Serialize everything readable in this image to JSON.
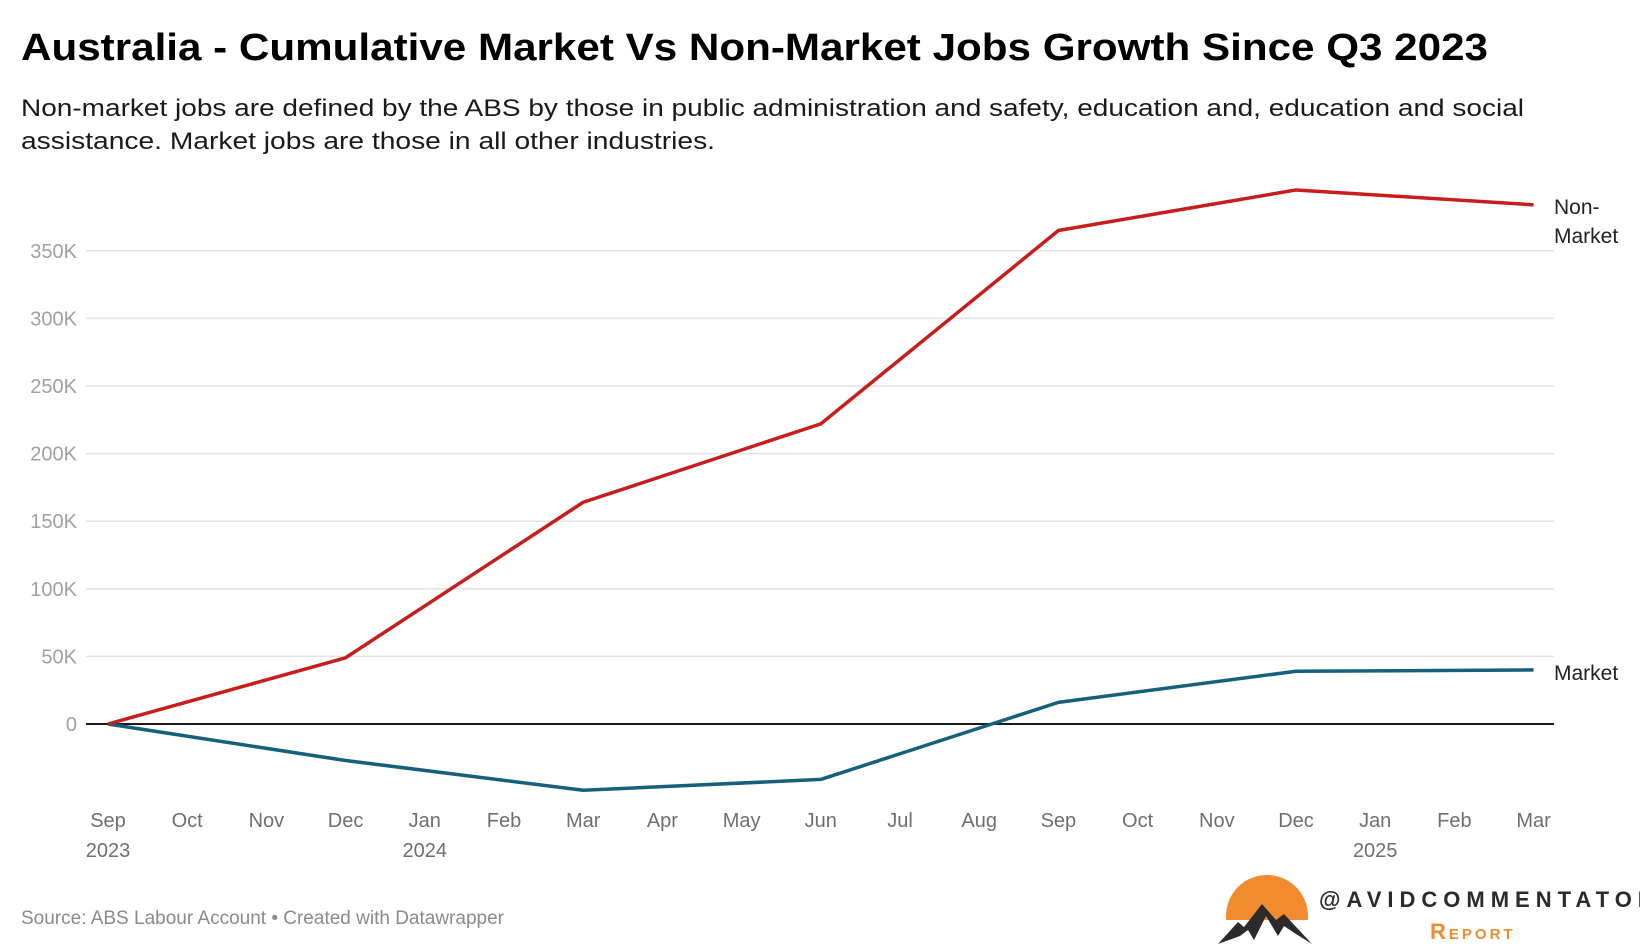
{
  "header": {
    "title": "Australia - Cumulative Market Vs Non-Market Jobs Growth Since Q3 2023",
    "subtitle_line1": "Non-market jobs are defined by the ABS by those in public administration and safety, education and, education and social",
    "subtitle_line2": "assistance. Market jobs are those in all other industries."
  },
  "footer": {
    "source": "Source: ABS Labour Account • Created with Datawrapper",
    "logo_handle": "@AVIDCOMMENTATOR",
    "logo_sub": "Report",
    "logo_colors": {
      "sun": "#f28a30",
      "mountain": "#2b2b2b"
    }
  },
  "chart_data": {
    "type": "line",
    "title": "Australia - Cumulative Market Vs Non-Market Jobs Growth Since Q3 2023",
    "x_ticks": [
      {
        "label": "Sep",
        "year": "2023"
      },
      {
        "label": "Oct"
      },
      {
        "label": "Nov"
      },
      {
        "label": "Dec"
      },
      {
        "label": "Jan",
        "year": "2024"
      },
      {
        "label": "Feb"
      },
      {
        "label": "Mar"
      },
      {
        "label": "Apr"
      },
      {
        "label": "May"
      },
      {
        "label": "Jun"
      },
      {
        "label": "Jul"
      },
      {
        "label": "Aug"
      },
      {
        "label": "Sep"
      },
      {
        "label": "Oct"
      },
      {
        "label": "Nov"
      },
      {
        "label": "Dec"
      },
      {
        "label": "Jan",
        "year": "2025"
      },
      {
        "label": "Feb"
      },
      {
        "label": "Mar"
      }
    ],
    "x": [
      "2023-09",
      "2023-12",
      "2024-03",
      "2024-06",
      "2024-09",
      "2024-12",
      "2025-03"
    ],
    "y_ticks": [
      {
        "value": 0,
        "label": "0"
      },
      {
        "value": 50000,
        "label": "50K"
      },
      {
        "value": 100000,
        "label": "100K"
      },
      {
        "value": 150000,
        "label": "150K"
      },
      {
        "value": 200000,
        "label": "200K"
      },
      {
        "value": 250000,
        "label": "250K"
      },
      {
        "value": 300000,
        "label": "300K"
      },
      {
        "value": 350000,
        "label": "350K"
      }
    ],
    "ylim": [
      -60000,
      400000
    ],
    "grid": true,
    "legend": "direct labels at line ends (right)",
    "series": [
      {
        "name": "Non-Market",
        "label_line1": "Non-",
        "label_line2": "Market",
        "color": "#c71e1d",
        "values": [
          0,
          49000,
          164000,
          222000,
          365000,
          395000,
          384000
        ]
      },
      {
        "name": "Market",
        "label_line1": "Market",
        "color": "#15607a",
        "values": [
          0,
          -27000,
          -49000,
          -41000,
          16000,
          39000,
          40000
        ]
      }
    ]
  }
}
